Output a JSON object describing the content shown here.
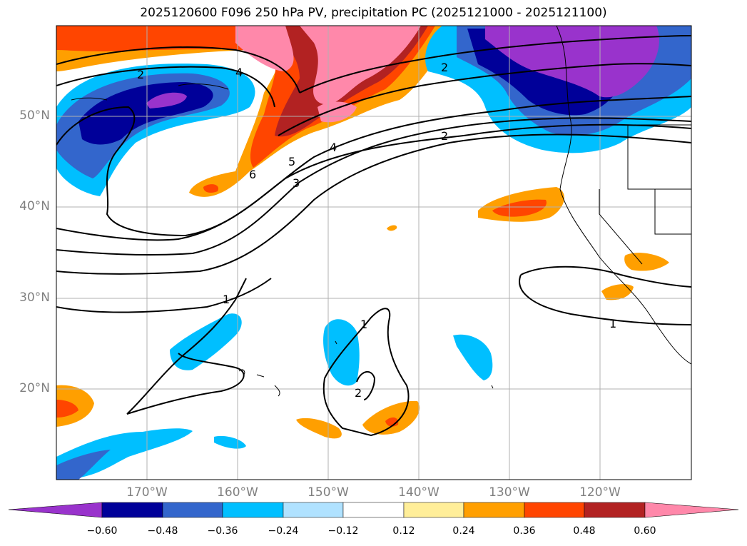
{
  "title": "2025120600 F096 250 hPa PV, precipitation PC (2025121000 - 2025121100)",
  "map": {
    "lat_labels": [
      "50°N",
      "40°N",
      "30°N",
      "20°N"
    ],
    "lon_labels": [
      "170°W",
      "160°W",
      "150°W",
      "140°W",
      "130°W",
      "120°W"
    ],
    "contour_labels": [
      "2",
      "4",
      "2",
      "5",
      "4",
      "6",
      "3",
      "2",
      "1",
      "1",
      "2",
      "1"
    ],
    "grid": true
  },
  "colorbar": {
    "tick_labels": [
      "−0.60",
      "−0.48",
      "−0.36",
      "−0.24",
      "−0.12",
      "0.12",
      "0.24",
      "0.36",
      "0.48",
      "0.60"
    ],
    "colors": [
      "#9933cc",
      "#000099",
      "#3366cc",
      "#00bfff",
      "#b0e2ff",
      "#ffffff",
      "#ffee99",
      "#ff9f00",
      "#ff4500",
      "#b22222",
      "#ff88aa"
    ]
  }
}
